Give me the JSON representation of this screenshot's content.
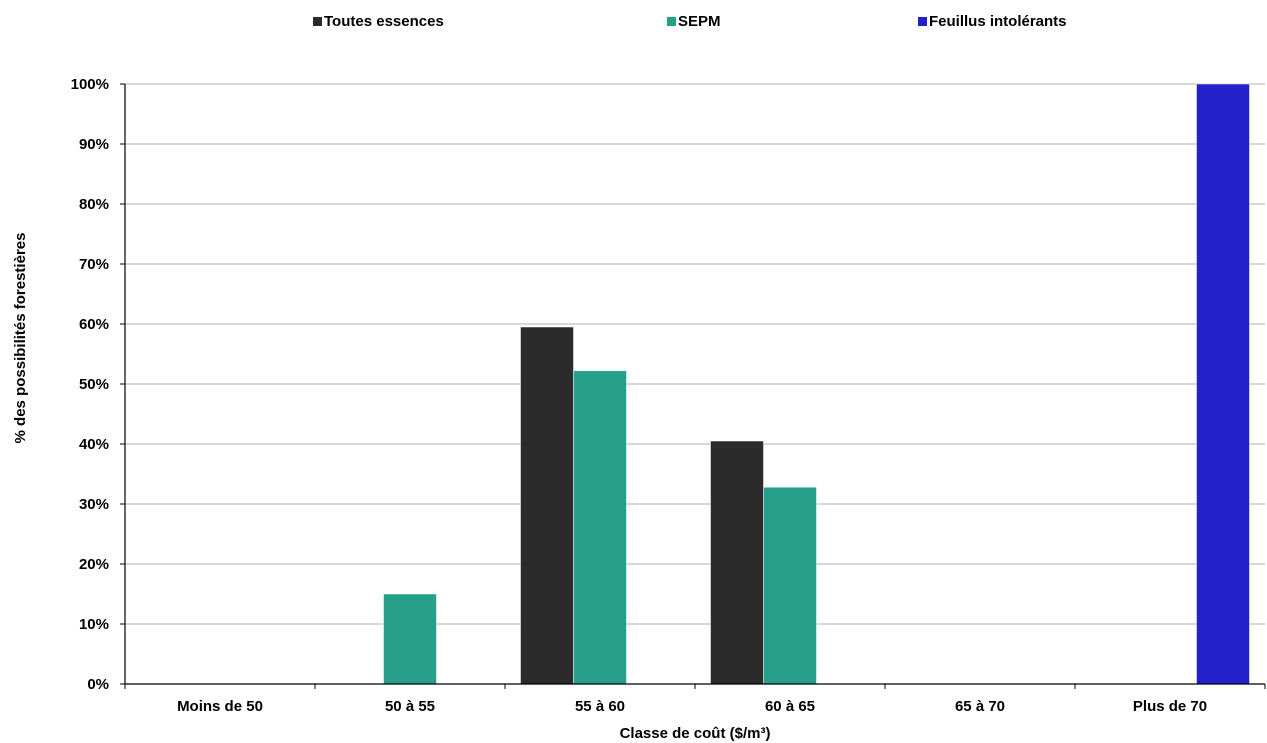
{
  "chart_data": {
    "type": "bar",
    "xlabel": "Classe de coût ($/m³)",
    "ylabel": "% des possibilités forestières",
    "ylim": [
      0,
      100
    ],
    "ytick_step": 10,
    "ytick_suffix": "%",
    "grid": true,
    "legend_placement": "top",
    "categories": [
      "Moins de 50",
      "50 à 55",
      "55 à 60",
      "60 à 65",
      "65 à 70",
      "Plus de 70"
    ],
    "series": [
      {
        "name": "Toutes essences",
        "color": "#2b2b2b",
        "values": [
          0,
          0,
          59.5,
          40.5,
          0,
          0
        ]
      },
      {
        "name": "SEPM",
        "color": "#26a08a",
        "values": [
          0,
          15,
          52.2,
          32.8,
          0,
          0
        ]
      },
      {
        "name": "Feuillus intolérants",
        "color": "#2222cc",
        "values": [
          0,
          0,
          0,
          0,
          0,
          100
        ]
      }
    ]
  }
}
